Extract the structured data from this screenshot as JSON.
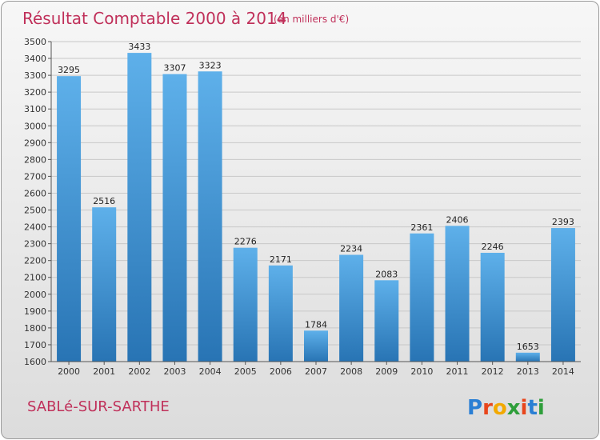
{
  "chart_data": {
    "type": "bar",
    "title": "Résultat Comptable 2000 à 2014",
    "unit_note": "(en milliers d'€)",
    "categories": [
      "2000",
      "2001",
      "2002",
      "2003",
      "2004",
      "2005",
      "2006",
      "2007",
      "2008",
      "2009",
      "2010",
      "2011",
      "2012",
      "2013",
      "2014"
    ],
    "values": [
      3295,
      2516,
      3433,
      3307,
      3323,
      2276,
      2171,
      1784,
      2234,
      2083,
      2361,
      2406,
      2246,
      1653,
      2393
    ],
    "ylim": [
      1600,
      3500
    ],
    "yticks": [
      1600,
      1700,
      1800,
      1900,
      2000,
      2100,
      2200,
      2300,
      2400,
      2500,
      2600,
      2700,
      2800,
      2900,
      3000,
      3100,
      3200,
      3300,
      3400,
      3500
    ],
    "grid": true,
    "bar_color_top": "#5eb0ea",
    "bar_color_bottom": "#2874b4"
  },
  "footer": {
    "city": "SABLé-SUR-SARTHE",
    "logo": "Proxiti"
  }
}
